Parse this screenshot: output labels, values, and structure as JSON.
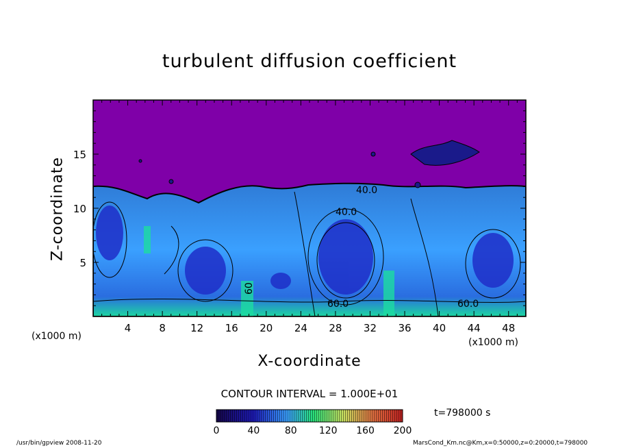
{
  "chart_data": {
    "type": "heatmap",
    "title": "turbulent diffusion coefficient",
    "xlabel": "X-coordinate",
    "ylabel": "Z-coordinate",
    "x_unit_left": "(x1000 m)",
    "x_unit_right": "(x1000 m)",
    "xlim": [
      0,
      50
    ],
    "ylim": [
      0,
      20
    ],
    "x_ticks": [
      "4",
      "8",
      "12",
      "16",
      "20",
      "24",
      "28",
      "32",
      "36",
      "40",
      "44",
      "48"
    ],
    "y_ticks": [
      "5",
      "10",
      "15"
    ],
    "contour_labels": [
      "40.0",
      "40.0",
      "60.0",
      "60.0",
      "60"
    ],
    "contour_interval": "CONTOUR INTERVAL = 1.000E+01",
    "colorbar": {
      "range": [
        0,
        200
      ],
      "tick_labels": [
        "0",
        "40",
        "80",
        "120",
        "160",
        "200"
      ]
    },
    "time": "t=798000 s",
    "grid": false,
    "colors": {
      "upper_fill": "#7f00a8",
      "low": "#1a1aa0",
      "mid": "#2a8cff",
      "high": "#00e0a0"
    }
  },
  "footer": {
    "left": "/usr/bin/gpview   2008-11-20",
    "right": "MarsCond_Km.nc@Km,x=0:50000,z=0:20000,t=798000"
  }
}
